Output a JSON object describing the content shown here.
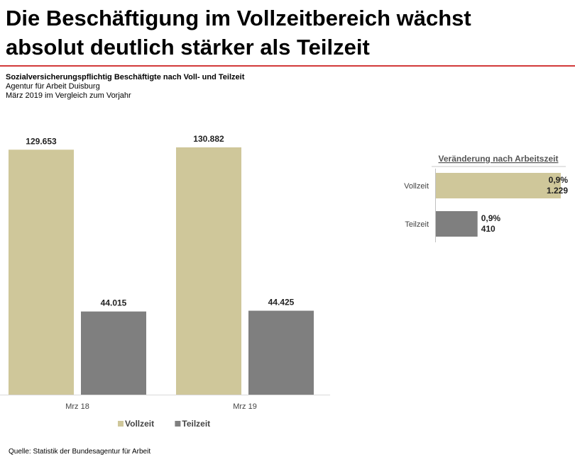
{
  "header": {
    "title_line1": "Die Beschäftigung im Vollzeitbereich wächst",
    "title_line2": "absolut deutlich stärker als Teilzeit",
    "subtitle": "Sozialversicherungspflichtig Beschäftigte nach Voll- und Teilzeit",
    "agency": "Agentur für Arbeit Duisburg",
    "period": "März 2019 im Vergleich zum Vorjahr"
  },
  "footer": {
    "source": "Quelle: Statistik der Bundesagentur für Arbeit"
  },
  "colors": {
    "vollzeit": "#cfc79a",
    "teilzeit": "#7f7f7f",
    "rule": "#d23a3a"
  },
  "chart_data": [
    {
      "type": "bar",
      "categories": [
        "Mrz 18",
        "Mrz 19"
      ],
      "series": [
        {
          "name": "Vollzeit",
          "values": [
            129653,
            130882
          ],
          "labels": [
            "129.653",
            "130.882"
          ]
        },
        {
          "name": "Teilzeit",
          "values": [
            44015,
            44425
          ],
          "labels": [
            "44.015",
            "44.425"
          ]
        }
      ],
      "ylim": [
        0,
        150000
      ],
      "legend": "bottom"
    },
    {
      "type": "bar",
      "orientation": "horizontal",
      "title": "Veränderung nach Arbeitszeit",
      "categories": [
        "Vollzeit",
        "Teilzeit"
      ],
      "values": [
        1229,
        410
      ],
      "percent_labels": [
        "0,9%",
        "0,9%"
      ],
      "value_labels": [
        "1.229",
        "410"
      ]
    }
  ]
}
